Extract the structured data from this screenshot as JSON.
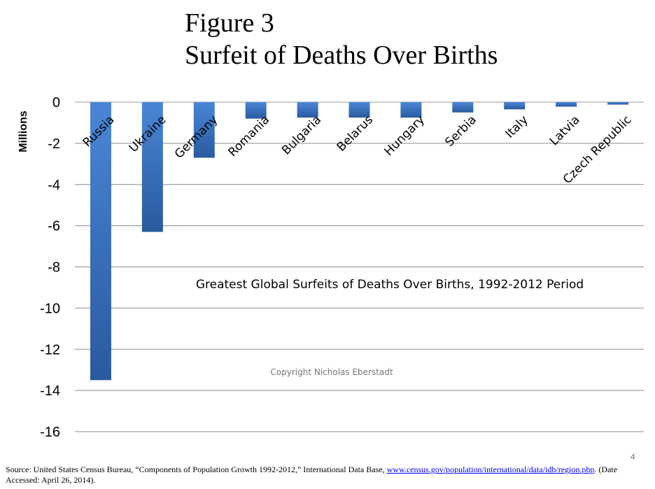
{
  "figure": {
    "title_line1": "Figure 3",
    "title_line2": "Surfeit of Deaths Over Births",
    "page_number": "4",
    "source_prefix": "Source: United States Census Bureau, “Components of Population Growth 1992-2012,” International Data Base, ",
    "source_link": "www.census.gov/population/international/data/idb/region.php",
    "source_suffix": ". (Date Accessed: April 26, 2014)."
  },
  "chart_data": {
    "type": "bar",
    "title": "Greatest Global Surfeits of Deaths Over Births, 1992-2012 Period",
    "ylabel": "Millions",
    "xlabel": "",
    "ylim": [
      -16,
      0
    ],
    "yticks": [
      0,
      -2,
      -4,
      -6,
      -8,
      -10,
      -12,
      -14,
      -16
    ],
    "grid": true,
    "categories": [
      "Russia",
      "Ukraine",
      "Germany",
      "Romania",
      "Bulgaria",
      "Belarus",
      "Hungary",
      "Serbia",
      "Italy",
      "Latvia",
      "Czech Republic"
    ],
    "values": [
      -13.5,
      -6.3,
      -2.7,
      -0.8,
      -0.75,
      -0.75,
      -0.75,
      -0.5,
      -0.35,
      -0.22,
      -0.12
    ],
    "annotation": "Copyright Nicholas Eberstadt",
    "bar_color": "#3a70c0",
    "bar_color_dark": "#2a5a9e"
  }
}
